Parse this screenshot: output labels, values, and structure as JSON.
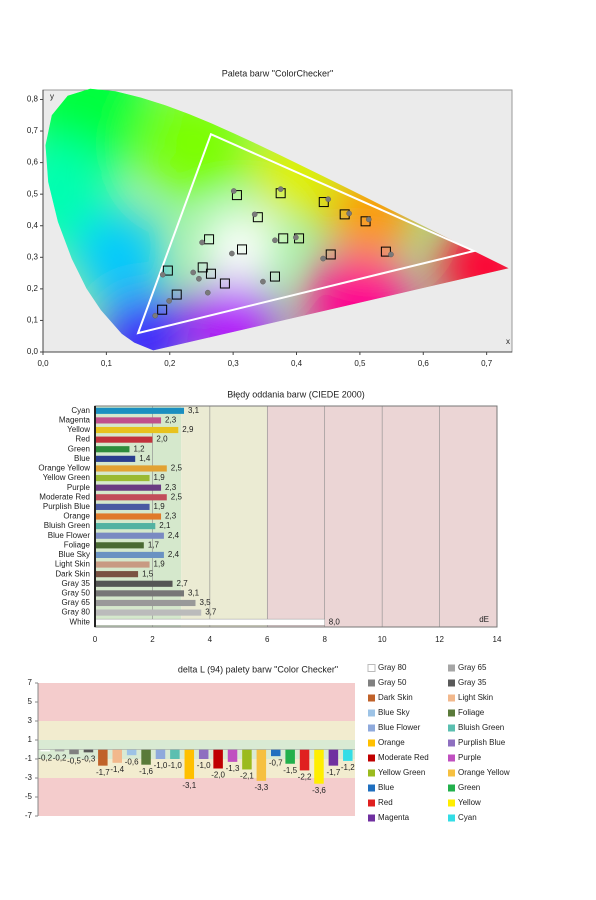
{
  "chart_data": [
    {
      "type": "scatter",
      "title": "Paleta barw \"ColorChecker\"",
      "x_label": "x",
      "y_label": "y",
      "xlim": [
        0,
        0.74
      ],
      "ylim": [
        0,
        0.83
      ],
      "background": "#ebebeb",
      "xticks": [
        {
          "value": 0,
          "label": "0,0"
        },
        {
          "value": 0.1,
          "label": "0,1"
        },
        {
          "value": 0.2,
          "label": "0,2"
        },
        {
          "value": 0.3,
          "label": "0,3"
        },
        {
          "value": 0.4,
          "label": "0,4"
        },
        {
          "value": 0.5,
          "label": "0,5"
        },
        {
          "value": 0.6,
          "label": "0,6"
        },
        {
          "value": 0.7,
          "label": "0,7"
        }
      ],
      "yticks": [
        {
          "value": 0,
          "label": "0,0"
        },
        {
          "value": 0.1,
          "label": "0,1"
        },
        {
          "value": 0.2,
          "label": "0,2"
        },
        {
          "value": 0.3,
          "label": "0,3"
        },
        {
          "value": 0.4,
          "label": "0,4"
        },
        {
          "value": 0.5,
          "label": "0,5"
        },
        {
          "value": 0.6,
          "label": "0,6"
        },
        {
          "value": 0.7,
          "label": "0,7"
        },
        {
          "value": 0.8,
          "label": "0,8"
        }
      ],
      "gamut": {
        "color": "#ffffff",
        "x": [
          0.68,
          0.265,
          0.15
        ],
        "y": [
          0.32,
          0.69,
          0.06
        ]
      },
      "series": [
        {
          "marker": "square",
          "color": "#000000",
          "x": [
            0.306,
            0.375,
            0.443,
            0.476,
            0.509,
            0.339,
            0.262,
            0.314,
            0.379,
            0.404,
            0.454,
            0.541,
            0.366,
            0.287,
            0.265,
            0.252,
            0.197,
            0.211,
            0.188
          ],
          "y": [
            0.497,
            0.503,
            0.475,
            0.436,
            0.414,
            0.427,
            0.357,
            0.325,
            0.36,
            0.36,
            0.309,
            0.318,
            0.239,
            0.217,
            0.248,
            0.268,
            0.258,
            0.182,
            0.134
          ]
        },
        {
          "marker": "circle",
          "color": "#7a7a7a",
          "x": [
            0.301,
            0.375,
            0.45,
            0.483,
            0.514,
            0.334,
            0.251,
            0.298,
            0.366,
            0.399,
            0.442,
            0.549,
            0.347,
            0.26,
            0.246,
            0.237,
            0.189,
            0.199,
            0.177
          ],
          "y": [
            0.51,
            0.516,
            0.484,
            0.439,
            0.42,
            0.436,
            0.347,
            0.312,
            0.354,
            0.363,
            0.296,
            0.309,
            0.223,
            0.188,
            0.232,
            0.252,
            0.245,
            0.162,
            0.115
          ]
        }
      ]
    },
    {
      "type": "barh",
      "title": "Błędy oddania barw (CIEDE 2000)",
      "x_label": "dE",
      "categories": [
        "Cyan",
        "Magenta",
        "Yellow",
        "Red",
        "Green",
        "Blue",
        "Orange Yellow",
        "Yellow Green",
        "Purple",
        "Moderate Red",
        "Purplish Blue",
        "Orange",
        "Bluish Green",
        "Blue Flower",
        "Foliage",
        "Blue Sky",
        "Light Skin",
        "Dark Skin",
        "Gray 35",
        "Gray 50",
        "Gray 65",
        "Gray 80",
        "White"
      ],
      "values": [
        3.1,
        2.3,
        2.9,
        2.0,
        1.2,
        1.4,
        2.5,
        1.9,
        2.3,
        2.5,
        1.9,
        2.3,
        2.1,
        2.4,
        1.7,
        2.4,
        1.9,
        1.5,
        2.7,
        3.1,
        3.5,
        3.7,
        8.0
      ],
      "value_labels": [
        "3,1",
        "2,3",
        "2,9",
        "2,0",
        "1,2",
        "1,4",
        "2,5",
        "1,9",
        "2,3",
        "2,5",
        "1,9",
        "2,3",
        "2,1",
        "2,4",
        "1,7",
        "2,4",
        "1,9",
        "1,5",
        "2,7",
        "3,1",
        "3,5",
        "3,7",
        "8,0"
      ],
      "colors": [
        "#1b8fc0",
        "#c0508c",
        "#e8c21e",
        "#c2323c",
        "#2e8c3c",
        "#2a3e8e",
        "#e2a232",
        "#9aba32",
        "#6a3a82",
        "#c24c5a",
        "#4a5aa2",
        "#e07a2a",
        "#52b2a2",
        "#7a8ac2",
        "#4a6a32",
        "#6a92c2",
        "#c89a82",
        "#7a5242",
        "#555555",
        "#777777",
        "#999999",
        "#bbbbbb",
        "#ffffff"
      ],
      "xlim": [
        0,
        14
      ],
      "xticks": [
        0,
        2,
        4,
        6,
        8,
        10,
        12,
        14
      ],
      "bands": [
        {
          "from": 0,
          "to": 3,
          "color": "#d5e8cc"
        },
        {
          "from": 3,
          "to": 6,
          "color": "#ebebd3"
        },
        {
          "from": 6,
          "to": 14,
          "color": "#ebd5d5"
        }
      ]
    },
    {
      "type": "bar",
      "title": "delta L (94) palety barw \"Color Checker\"",
      "ylim": [
        -7,
        7
      ],
      "yticks": [
        -7,
        -5,
        -3,
        -1,
        1,
        3,
        5,
        7
      ],
      "bands": [
        {
          "from": -7,
          "to": -3,
          "color": "#f4cccc"
        },
        {
          "from": -3,
          "to": -1,
          "color": "#f2eccf"
        },
        {
          "from": -1,
          "to": 1,
          "color": "#d9ead3"
        },
        {
          "from": 1,
          "to": 3,
          "color": "#f2eccf"
        },
        {
          "from": 3,
          "to": 7,
          "color": "#f4cccc"
        }
      ],
      "series": [
        {
          "name": "Gray 80",
          "color": "#ffffff",
          "values": [
            -0.2
          ],
          "value_labels": [
            "-0,2"
          ]
        },
        {
          "name": "Gray 65",
          "color": "#a6a6a6",
          "values": [
            -0.2
          ],
          "value_labels": [
            "-0,2"
          ]
        },
        {
          "name": "Gray 50",
          "color": "#808080",
          "values": [
            -0.5
          ],
          "value_labels": [
            "-0,5"
          ]
        },
        {
          "name": "Gray 35",
          "color": "#595959",
          "values": [
            -0.3
          ],
          "value_labels": [
            "-0,3"
          ]
        },
        {
          "name": "Dark Skin",
          "color": "#c0622a",
          "values": [
            -1.7
          ],
          "value_labels": [
            "-1,7"
          ]
        },
        {
          "name": "Light Skin",
          "color": "#f2b88c",
          "values": [
            -1.4
          ],
          "value_labels": [
            "-1,4"
          ]
        },
        {
          "name": "Blue Sky",
          "color": "#9dc3e6",
          "values": [
            -0.6
          ],
          "value_labels": [
            "-0,6"
          ]
        },
        {
          "name": "Foliage",
          "color": "#5a7a3a",
          "values": [
            -1.6
          ],
          "value_labels": [
            "-1,6"
          ]
        },
        {
          "name": "Blue Flower",
          "color": "#8faadc",
          "values": [
            -1.0
          ],
          "value_labels": [
            "-1,0"
          ]
        },
        {
          "name": "Bluish Green",
          "color": "#5bbfb0",
          "values": [
            -1.0
          ],
          "value_labels": [
            "-1,0"
          ]
        },
        {
          "name": "Orange",
          "color": "#ffc000",
          "values": [
            -3.1
          ],
          "value_labels": [
            "-3,1"
          ]
        },
        {
          "name": "Purplish Blue",
          "color": "#8e6fc0",
          "values": [
            -1.0
          ],
          "value_labels": [
            "-1,0"
          ]
        },
        {
          "name": "Moderate Red",
          "color": "#c00000",
          "values": [
            -2.0
          ],
          "value_labels": [
            "-2,0"
          ]
        },
        {
          "name": "Purple",
          "color": "#c050c0",
          "values": [
            -1.3
          ],
          "value_labels": [
            "-1,3"
          ]
        },
        {
          "name": "Yellow Green",
          "color": "#9bbb1e",
          "values": [
            -2.1
          ],
          "value_labels": [
            "-2,1"
          ]
        },
        {
          "name": "Orange Yellow",
          "color": "#f6c040",
          "values": [
            -3.3
          ],
          "value_labels": [
            "-3,3"
          ]
        },
        {
          "name": "Blue",
          "color": "#1f6fbf",
          "values": [
            -0.7
          ],
          "value_labels": [
            "-0,7"
          ]
        },
        {
          "name": "Green",
          "color": "#22b04c",
          "values": [
            -1.5
          ],
          "value_labels": [
            "-1,5"
          ]
        },
        {
          "name": "Red",
          "color": "#e02020",
          "values": [
            -2.2
          ],
          "value_labels": [
            "-2,2"
          ]
        },
        {
          "name": "Yellow",
          "color": "#ffee00",
          "values": [
            -3.6
          ],
          "value_labels": [
            "-3,6"
          ]
        },
        {
          "name": "Magenta",
          "color": "#7030a0",
          "values": [
            -1.7
          ],
          "value_labels": [
            "-1,7"
          ]
        },
        {
          "name": "Cyan",
          "color": "#33dde6",
          "values": [
            -1.2
          ],
          "value_labels": [
            "-1,2"
          ]
        }
      ]
    }
  ]
}
